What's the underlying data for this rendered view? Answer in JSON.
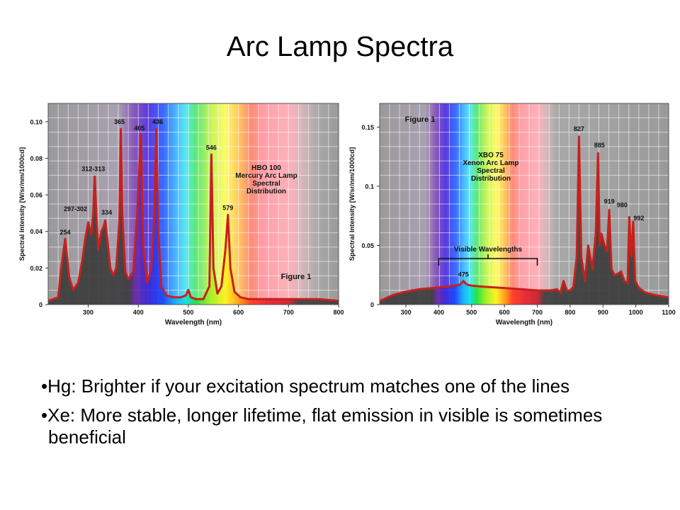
{
  "slide": {
    "title": "Arc Lamp Spectra",
    "bullets": [
      "Hg: Brighter if your excitation spectrum matches one of the lines",
      "Xe: More stable, longer lifetime, flat emission in visible is sometimes beneficial"
    ]
  },
  "chart_data": [
    {
      "type": "line",
      "title": "HBO 100 Mercury Arc Lamp Spectral Distribution",
      "title_lines": [
        "HBO 100",
        "Mercury Arc Lamp",
        "Spectral",
        "Distribution"
      ],
      "figure_label": "Figure 1",
      "xlabel": "Wavelength (nm)",
      "ylabel": "Spectral Intensity [W/sr/nm/1000cd]",
      "xlim": [
        220,
        800
      ],
      "ylim": [
        0,
        0.11
      ],
      "xticks": [
        300,
        400,
        500,
        600,
        700,
        800
      ],
      "yticks": [
        0,
        0.02,
        0.04,
        0.06,
        0.08,
        0.1
      ],
      "ytick_labels": [
        "0",
        "0.02",
        "0.04",
        "0.06",
        "0.08",
        "0.10"
      ],
      "grid": true,
      "line_color": "#c8201c",
      "x": [
        220,
        240,
        246,
        254,
        262,
        270,
        280,
        288,
        294,
        300,
        306,
        310,
        313,
        316,
        320,
        326,
        330,
        334,
        338,
        344,
        350,
        356,
        362,
        365,
        368,
        374,
        380,
        390,
        398,
        405,
        410,
        418,
        426,
        432,
        436,
        440,
        446,
        456,
        470,
        485,
        495,
        500,
        505,
        515,
        530,
        542,
        546,
        550,
        558,
        566,
        574,
        579,
        584,
        592,
        604,
        620,
        640,
        680,
        720,
        760,
        800
      ],
      "y": [
        0.002,
        0.004,
        0.02,
        0.036,
        0.015,
        0.008,
        0.012,
        0.024,
        0.036,
        0.045,
        0.038,
        0.05,
        0.07,
        0.05,
        0.03,
        0.04,
        0.042,
        0.046,
        0.036,
        0.02,
        0.016,
        0.02,
        0.045,
        0.096,
        0.05,
        0.018,
        0.014,
        0.018,
        0.05,
        0.093,
        0.03,
        0.012,
        0.02,
        0.05,
        0.096,
        0.04,
        0.01,
        0.005,
        0.004,
        0.004,
        0.005,
        0.008,
        0.004,
        0.003,
        0.003,
        0.01,
        0.082,
        0.02,
        0.006,
        0.01,
        0.03,
        0.049,
        0.02,
        0.007,
        0.004,
        0.003,
        0.003,
        0.003,
        0.003,
        0.003,
        0.002
      ],
      "peak_labels": [
        {
          "x": 254,
          "y": 0.036,
          "label": "254"
        },
        {
          "x": 300,
          "y": 0.045,
          "label": "297-302"
        },
        {
          "x": 313,
          "y": 0.07,
          "label": "312-313"
        },
        {
          "x": 334,
          "y": 0.046,
          "label": "334"
        },
        {
          "x": 365,
          "y": 0.096,
          "label": "365"
        },
        {
          "x": 405,
          "y": 0.093,
          "label": "405"
        },
        {
          "x": 436,
          "y": 0.096,
          "label": "436"
        },
        {
          "x": 546,
          "y": 0.082,
          "label": "546"
        },
        {
          "x": 579,
          "y": 0.049,
          "label": "579"
        }
      ]
    },
    {
      "type": "line",
      "title": "XBO 75 Xenon Arc Lamp Spectral Distribution",
      "title_lines": [
        "XBO 75",
        "Xenon Arc Lamp",
        "Spectral",
        "Distribution"
      ],
      "figure_label": "Figure 1",
      "visible_label": "Visible Wavelengths",
      "visible_range": [
        400,
        700
      ],
      "xlabel": "Wavelength (nm)",
      "ylabel": "Spectral Intensity [W/sr/nm/1000cd]",
      "xlim": [
        220,
        1100
      ],
      "ylim": [
        0,
        0.17
      ],
      "xticks": [
        300,
        400,
        500,
        600,
        700,
        800,
        900,
        1000,
        1100
      ],
      "yticks": [
        0,
        0.05,
        0.1,
        0.15
      ],
      "ytick_labels": [
        "0",
        "0.05",
        "0.1",
        "0.15"
      ],
      "grid": true,
      "line_color": "#c8201c",
      "x": [
        220,
        260,
        300,
        340,
        380,
        420,
        450,
        465,
        475,
        485,
        500,
        540,
        600,
        650,
        700,
        740,
        760,
        770,
        780,
        790,
        800,
        810,
        820,
        827,
        834,
        845,
        855,
        868,
        878,
        885,
        890,
        895,
        905,
        912,
        919,
        926,
        935,
        945,
        955,
        965,
        975,
        980,
        986,
        992,
        998,
        1010,
        1030,
        1060,
        1100
      ],
      "y": [
        0.003,
        0.008,
        0.011,
        0.013,
        0.014,
        0.015,
        0.016,
        0.017,
        0.02,
        0.017,
        0.016,
        0.015,
        0.014,
        0.013,
        0.012,
        0.012,
        0.013,
        0.01,
        0.02,
        0.012,
        0.012,
        0.015,
        0.04,
        0.142,
        0.04,
        0.02,
        0.05,
        0.03,
        0.06,
        0.128,
        0.05,
        0.06,
        0.05,
        0.045,
        0.08,
        0.03,
        0.025,
        0.026,
        0.028,
        0.02,
        0.018,
        0.074,
        0.04,
        0.07,
        0.02,
        0.014,
        0.01,
        0.008,
        0.006
      ],
      "peak_labels": [
        {
          "x": 475,
          "y": 0.02,
          "label": "475"
        },
        {
          "x": 827,
          "y": 0.142,
          "label": "827"
        },
        {
          "x": 885,
          "y": 0.128,
          "label": "885"
        },
        {
          "x": 919,
          "y": 0.08,
          "label": "919"
        },
        {
          "x": 980,
          "y": 0.074,
          "label": "980"
        },
        {
          "x": 992,
          "y": 0.07,
          "label": "992"
        }
      ]
    }
  ]
}
